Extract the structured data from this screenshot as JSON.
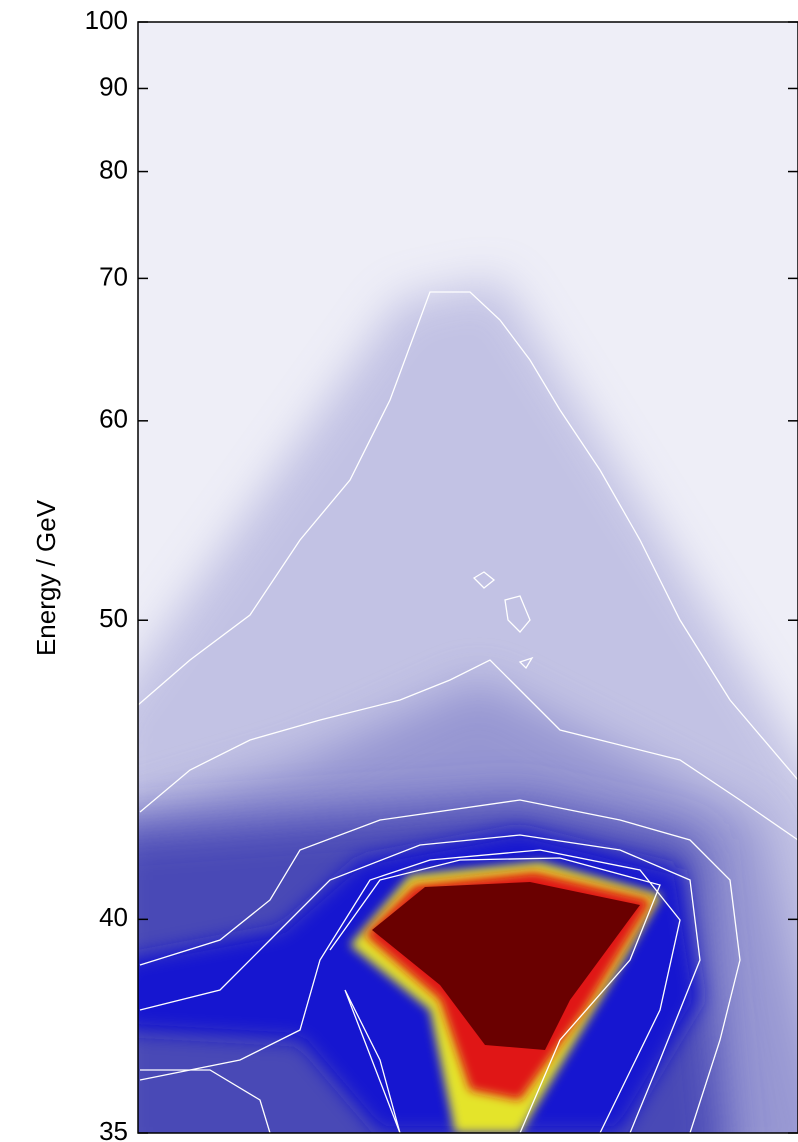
{
  "chart_data": {
    "type": "density",
    "ylabel": "Energy / GeV",
    "ylim": [
      35,
      100
    ],
    "yticks": [
      35,
      40,
      50,
      60,
      70,
      80,
      90,
      100
    ],
    "yscale": "reciprocal"
  }
}
